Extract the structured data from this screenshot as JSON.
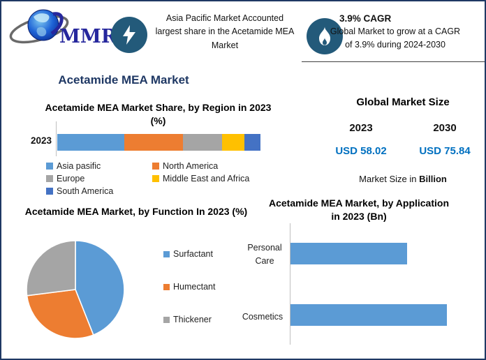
{
  "main_title": "Acetamide MEA Market",
  "colors": {
    "border": "#1f3864",
    "title_navy": "#1f3864",
    "icon_circle": "#235a7a",
    "value_blue": "#0070c0",
    "series_blue": "#5b9bd5",
    "series_orange": "#ed7d31",
    "series_gray": "#a5a5a5",
    "series_yellow": "#ffc000",
    "series_darkblue": "#4472c4"
  },
  "header": {
    "logo": {
      "text": "MMR"
    },
    "highlight1": {
      "icon": "lightning",
      "text": "Asia Pacific Market Accounted largest share in the Acetamide MEA Market"
    },
    "highlight2": {
      "icon": "flame",
      "title": "3.9% CAGR",
      "text": "Global Market to grow at a CAGR of 3.9% during 2024-2030"
    }
  },
  "global_market_size": {
    "title": "Global Market Size",
    "years": [
      "2023",
      "2030"
    ],
    "values": [
      "USD 58.02",
      "USD 75.84"
    ],
    "note_prefix": "Market Size in ",
    "note_bold": "Billion"
  },
  "chart_data": [
    {
      "type": "bar",
      "subtype": "stacked-horizontal",
      "title": "Acetamide MEA Market Share, by Region in 2023 (%)",
      "categories": [
        "2023"
      ],
      "series": [
        {
          "name": "Asia pasific",
          "values": [
            33
          ],
          "color": "#5b9bd5"
        },
        {
          "name": "North America",
          "values": [
            29
          ],
          "color": "#ed7d31"
        },
        {
          "name": "Europe",
          "values": [
            19
          ],
          "color": "#a5a5a5"
        },
        {
          "name": "Middle East and Africa",
          "values": [
            11
          ],
          "color": "#ffc000"
        },
        {
          "name": "South America",
          "values": [
            8
          ],
          "color": "#4472c4"
        }
      ],
      "xlabel": "",
      "ylabel": "",
      "grid": false,
      "legend_position": "bottom"
    },
    {
      "type": "pie",
      "title": "Acetamide MEA Market, by Function In 2023 (%)",
      "labels": [
        "Surfactant",
        "Humectant",
        "Thickener"
      ],
      "values": [
        44,
        29,
        27
      ],
      "colors": [
        "#5b9bd5",
        "#ed7d31",
        "#a5a5a5"
      ],
      "legend_position": "right",
      "start_angle": "top",
      "direction": "clockwise"
    },
    {
      "type": "bar",
      "subtype": "horizontal",
      "title": "Acetamide MEA Market, by Application in 2023 (Bn)",
      "categories": [
        "Personal Care",
        "Cosmetics"
      ],
      "values": [
        24.8,
        33.2
      ],
      "color": "#5b9bd5",
      "xlabel": "",
      "ylabel": "",
      "grid": false
    }
  ]
}
